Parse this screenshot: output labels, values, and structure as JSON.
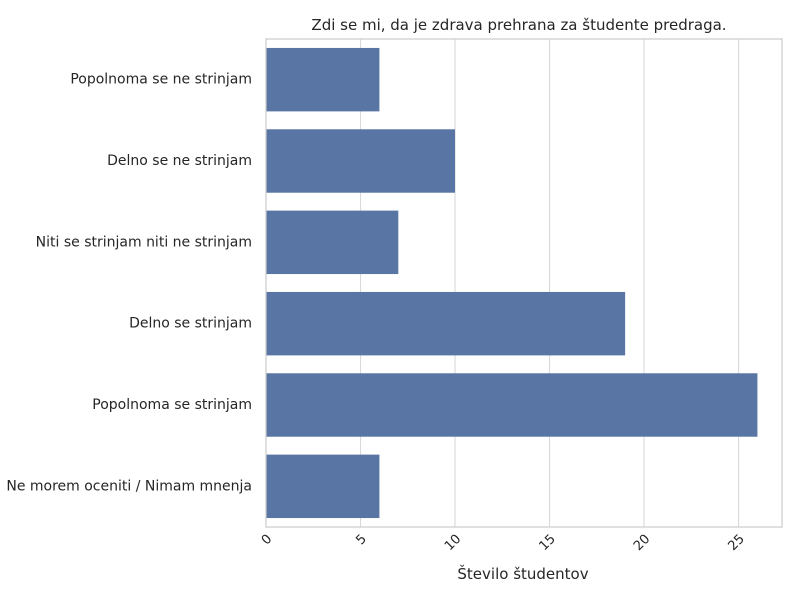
{
  "chart_data": {
    "type": "bar",
    "orientation": "horizontal",
    "title": "Zdi se mi, da je zdrava prehrana za študente predraga.",
    "xlabel": "Število študentov",
    "ylabel": "",
    "categories": [
      "Popolnoma se ne strinjam",
      "Delno se ne strinjam",
      "Niti se strinjam niti ne strinjam",
      "Delno se strinjam",
      "Popolnoma se strinjam",
      "Ne morem oceniti / Nimam mnenja"
    ],
    "values": [
      6,
      10,
      7,
      19,
      26,
      6
    ],
    "xticks": [
      0,
      5,
      10,
      15,
      20,
      25
    ],
    "xlim": [
      0,
      27.3
    ],
    "grid": "vertical",
    "bar_color": "#5975a4",
    "grid_color": "#d9d9d9",
    "frame_color": "#cccccc"
  }
}
